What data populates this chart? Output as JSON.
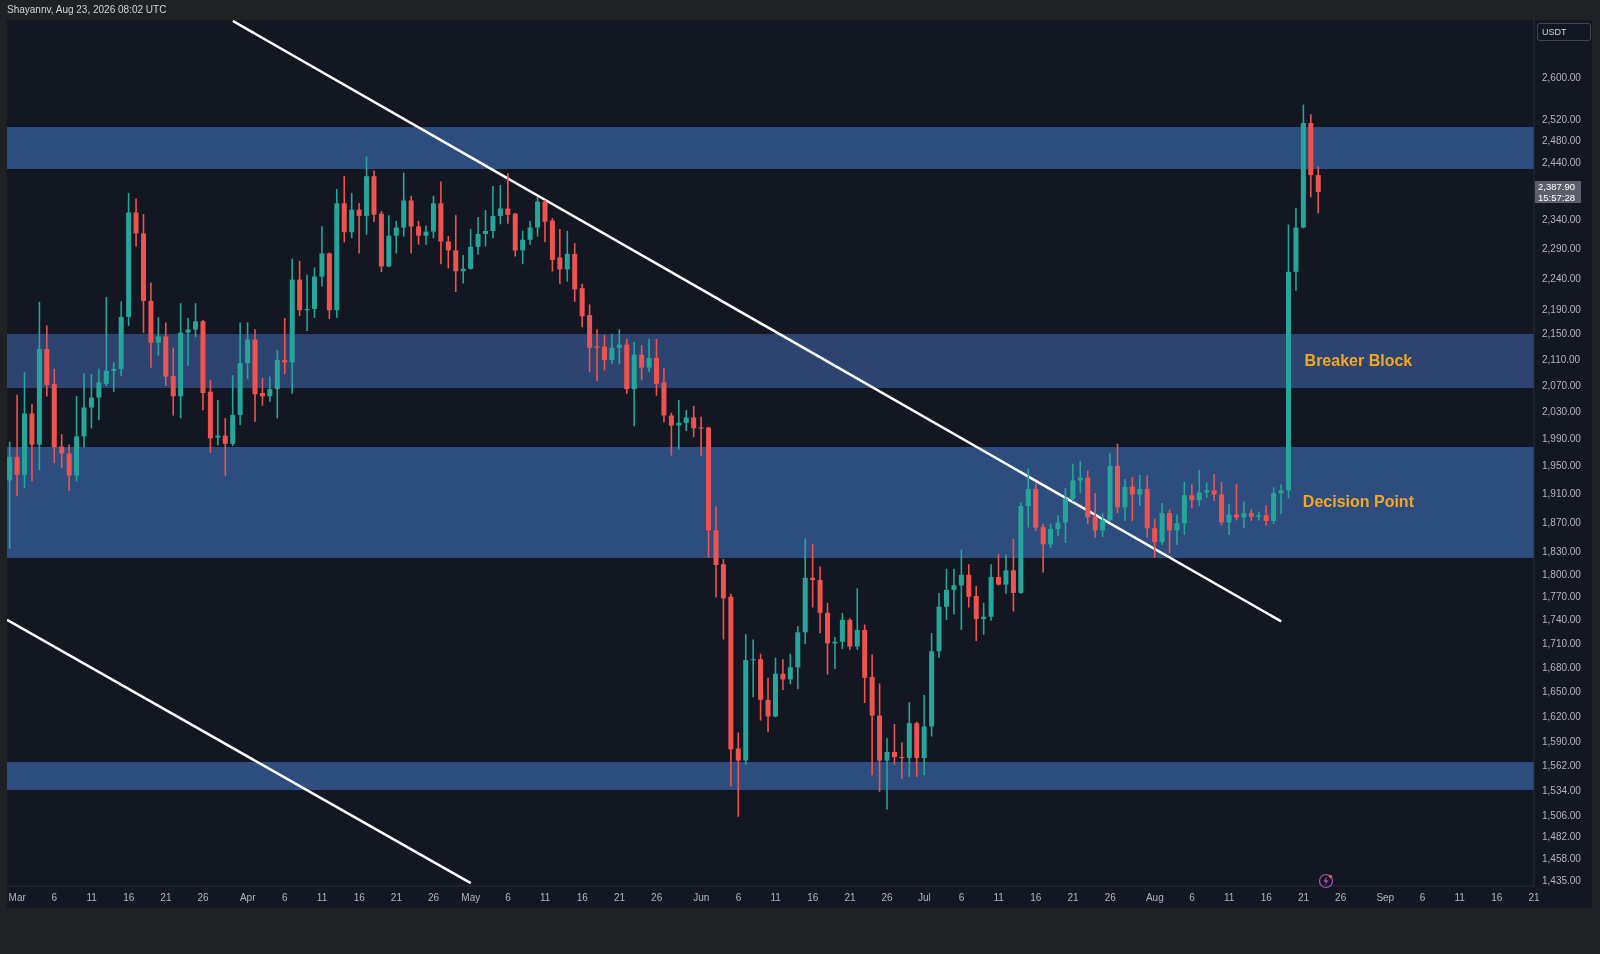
{
  "chart_data": {
    "type": "candlestick",
    "annotations": [
      "Shayannv, Aug 23, 2026 08:02 UTC",
      "2,387.90",
      "15:57:28"
    ],
    "ylabel": "USDT",
    "x": [
      "2026-02-28",
      "2026-03-01",
      "2026-03-02",
      "2026-03-03",
      "2026-03-04",
      "2026-03-05",
      "2026-03-06",
      "2026-03-07",
      "2026-03-08",
      "2026-03-09",
      "2026-03-10",
      "2026-03-11",
      "2026-03-12",
      "2026-03-13",
      "2026-03-14",
      "2026-03-15",
      "2026-03-16",
      "2026-03-17",
      "2026-03-18",
      "2026-03-19",
      "2026-03-20",
      "2026-03-21",
      "2026-03-22",
      "2026-03-23",
      "2026-03-24",
      "2026-03-25",
      "2026-03-26",
      "2026-03-27",
      "2026-03-28",
      "2026-03-29",
      "2026-03-30",
      "2026-03-31",
      "2026-04-01",
      "2026-04-02",
      "2026-04-03",
      "2026-04-04",
      "2026-04-05",
      "2026-04-06",
      "2026-04-07",
      "2026-04-08",
      "2026-04-09",
      "2026-04-10",
      "2026-04-11",
      "2026-04-12",
      "2026-04-13",
      "2026-04-14",
      "2026-04-15",
      "2026-04-16",
      "2026-04-17",
      "2026-04-18",
      "2026-04-19",
      "2026-04-20",
      "2026-04-21",
      "2026-04-22",
      "2026-04-23",
      "2026-04-24",
      "2026-04-25",
      "2026-04-26",
      "2026-04-27",
      "2026-04-28",
      "2026-04-29",
      "2026-04-30",
      "2026-05-01",
      "2026-05-02",
      "2026-05-03",
      "2026-05-04",
      "2026-05-05",
      "2026-05-06",
      "2026-05-07",
      "2026-05-08",
      "2026-05-09",
      "2026-05-10",
      "2026-05-11",
      "2026-05-12",
      "2026-05-13",
      "2026-05-14",
      "2026-05-15",
      "2026-05-16",
      "2026-05-17",
      "2026-05-18",
      "2026-05-19",
      "2026-05-20",
      "2026-05-21",
      "2026-05-22",
      "2026-05-23",
      "2026-05-24",
      "2026-05-25",
      "2026-05-26",
      "2026-05-27",
      "2026-05-28",
      "2026-05-29",
      "2026-05-30",
      "2026-05-31",
      "2026-06-01",
      "2026-06-02",
      "2026-06-03",
      "2026-06-04",
      "2026-06-05",
      "2026-06-06",
      "2026-06-07",
      "2026-06-08",
      "2026-06-09",
      "2026-06-10",
      "2026-06-11",
      "2026-06-12",
      "2026-06-13",
      "2026-06-14",
      "2026-06-15",
      "2026-06-16",
      "2026-06-17",
      "2026-06-18",
      "2026-06-19",
      "2026-06-20",
      "2026-06-21",
      "2026-06-22",
      "2026-06-23",
      "2026-06-24",
      "2026-06-25",
      "2026-06-26",
      "2026-06-27",
      "2026-06-28",
      "2026-06-29",
      "2026-06-30",
      "2026-07-01",
      "2026-07-02",
      "2026-07-03",
      "2026-07-04",
      "2026-07-05",
      "2026-07-06",
      "2026-07-07",
      "2026-07-08",
      "2026-07-09",
      "2026-07-10",
      "2026-07-11",
      "2026-07-12",
      "2026-07-13",
      "2026-07-14",
      "2026-07-15",
      "2026-07-16",
      "2026-07-17",
      "2026-07-18",
      "2026-07-19",
      "2026-07-20",
      "2026-07-21",
      "2026-07-22",
      "2026-07-23",
      "2026-07-24",
      "2026-07-25",
      "2026-07-26",
      "2026-07-27",
      "2026-07-28",
      "2026-07-29",
      "2026-07-30",
      "2026-07-31",
      "2026-08-01",
      "2026-08-02",
      "2026-08-03",
      "2026-08-04",
      "2026-08-05",
      "2026-08-06",
      "2026-08-07",
      "2026-08-08",
      "2026-08-09",
      "2026-08-10",
      "2026-08-11",
      "2026-08-12",
      "2026-08-13",
      "2026-08-14",
      "2026-08-15",
      "2026-08-16",
      "2026-08-17",
      "2026-08-18",
      "2026-08-19",
      "2026-08-20",
      "2026-08-21",
      "2026-08-22",
      "2026-08-23"
    ],
    "ohlc": [
      [
        1929,
        1984,
        1835,
        1963
      ],
      [
        1963,
        2054,
        1908,
        1937
      ],
      [
        1937,
        2089,
        1919,
        2027
      ],
      [
        2027,
        2040,
        1929,
        1981
      ],
      [
        1981,
        2200,
        1945,
        2126
      ],
      [
        2126,
        2162,
        2054,
        2070
      ],
      [
        2072,
        2094,
        1955,
        1977
      ],
      [
        1978,
        1995,
        1948,
        1968
      ],
      [
        1968,
        1980,
        1915,
        1936
      ],
      [
        1936,
        2052,
        1929,
        1993
      ],
      [
        1993,
        2087,
        1978,
        2036
      ],
      [
        2036,
        2086,
        2006,
        2051
      ],
      [
        2051,
        2094,
        2018,
        2074
      ],
      [
        2072,
        2208,
        2070,
        2092
      ],
      [
        2092,
        2104,
        2061,
        2095
      ],
      [
        2095,
        2201,
        2085,
        2177
      ],
      [
        2177,
        2385,
        2164,
        2352
      ],
      [
        2352,
        2375,
        2295,
        2316
      ],
      [
        2316,
        2348,
        2153,
        2203
      ],
      [
        2203,
        2232,
        2098,
        2136
      ],
      [
        2136,
        2175,
        2117,
        2146
      ],
      [
        2146,
        2167,
        2070,
        2083
      ],
      [
        2084,
        2127,
        2025,
        2053
      ],
      [
        2053,
        2198,
        2021,
        2152
      ],
      [
        2152,
        2174,
        2101,
        2157
      ],
      [
        2157,
        2198,
        2146,
        2170
      ],
      [
        2170,
        2171,
        2033,
        2058
      ],
      [
        2060,
        2077,
        1970,
        1990
      ],
      [
        1991,
        2046,
        1981,
        1994
      ],
      [
        1994,
        2019,
        1937,
        1982
      ],
      [
        1982,
        2084,
        1980,
        2025
      ],
      [
        2025,
        2167,
        2011,
        2104
      ],
      [
        2104,
        2167,
        2081,
        2141
      ],
      [
        2141,
        2156,
        2016,
        2056
      ],
      [
        2058,
        2080,
        2040,
        2053
      ],
      [
        2053,
        2082,
        2046,
        2064
      ],
      [
        2064,
        2123,
        2021,
        2109
      ],
      [
        2109,
        2174,
        2088,
        2105
      ],
      [
        2105,
        2272,
        2058,
        2238
      ],
      [
        2238,
        2268,
        2180,
        2188
      ],
      [
        2188,
        2245,
        2156,
        2190
      ],
      [
        2190,
        2257,
        2177,
        2243
      ],
      [
        2243,
        2327,
        2228,
        2282
      ],
      [
        2282,
        2282,
        2175,
        2188
      ],
      [
        2188,
        2392,
        2177,
        2368
      ],
      [
        2368,
        2415,
        2302,
        2318
      ],
      [
        2318,
        2385,
        2309,
        2357
      ],
      [
        2357,
        2367,
        2283,
        2346
      ],
      [
        2346,
        2450,
        2315,
        2416
      ],
      [
        2416,
        2425,
        2337,
        2348
      ],
      [
        2350,
        2353,
        2252,
        2260
      ],
      [
        2260,
        2346,
        2260,
        2312
      ],
      [
        2312,
        2336,
        2283,
        2326
      ],
      [
        2326,
        2421,
        2312,
        2373
      ],
      [
        2373,
        2380,
        2283,
        2328
      ],
      [
        2328,
        2336,
        2298,
        2312
      ],
      [
        2312,
        2328,
        2298,
        2319
      ],
      [
        2319,
        2380,
        2309,
        2368
      ],
      [
        2368,
        2405,
        2265,
        2302
      ],
      [
        2302,
        2310,
        2258,
        2287
      ],
      [
        2287,
        2346,
        2219,
        2252
      ],
      [
        2252,
        2278,
        2233,
        2256
      ],
      [
        2256,
        2322,
        2256,
        2293
      ],
      [
        2293,
        2343,
        2281,
        2315
      ],
      [
        2315,
        2355,
        2295,
        2320
      ],
      [
        2320,
        2397,
        2309,
        2346
      ],
      [
        2346,
        2399,
        2333,
        2359
      ],
      [
        2359,
        2420,
        2334,
        2348
      ],
      [
        2350,
        2350,
        2278,
        2287
      ],
      [
        2287,
        2319,
        2265,
        2305
      ],
      [
        2305,
        2336,
        2298,
        2326
      ],
      [
        2326,
        2378,
        2312,
        2371
      ],
      [
        2371,
        2373,
        2302,
        2336
      ],
      [
        2338,
        2341,
        2253,
        2271
      ],
      [
        2275,
        2322,
        2232,
        2255
      ],
      [
        2255,
        2319,
        2236,
        2281
      ],
      [
        2281,
        2298,
        2203,
        2222
      ],
      [
        2224,
        2230,
        2162,
        2178
      ],
      [
        2180,
        2196,
        2091,
        2128
      ],
      [
        2130,
        2156,
        2077,
        2128
      ],
      [
        2130,
        2147,
        2094,
        2109
      ],
      [
        2109,
        2149,
        2104,
        2128
      ],
      [
        2128,
        2156,
        2104,
        2133
      ],
      [
        2133,
        2141,
        2058,
        2064
      ],
      [
        2064,
        2136,
        2009,
        2117
      ],
      [
        2117,
        2131,
        2079,
        2097
      ],
      [
        2097,
        2141,
        2091,
        2112
      ],
      [
        2112,
        2141,
        2055,
        2072
      ],
      [
        2074,
        2095,
        2015,
        2024
      ],
      [
        2024,
        2027,
        1966,
        2009
      ],
      [
        2009,
        2046,
        1975,
        2013
      ],
      [
        2013,
        2031,
        2002,
        2021
      ],
      [
        2021,
        2037,
        1993,
        2005
      ],
      [
        2006,
        2021,
        1965,
        2005
      ],
      [
        2006,
        2006,
        1823,
        1859
      ],
      [
        1859,
        1891,
        1770,
        1812
      ],
      [
        1813,
        1819,
        1716,
        1768
      ],
      [
        1770,
        1773,
        1539,
        1581
      ],
      [
        1582,
        1600,
        1505,
        1568
      ],
      [
        1568,
        1721,
        1564,
        1689
      ],
      [
        1689,
        1714,
        1644,
        1690
      ],
      [
        1690,
        1696,
        1616,
        1640
      ],
      [
        1640,
        1666,
        1602,
        1620
      ],
      [
        1620,
        1691,
        1620,
        1672
      ],
      [
        1672,
        1689,
        1653,
        1665
      ],
      [
        1665,
        1696,
        1660,
        1680
      ],
      [
        1680,
        1731,
        1654,
        1724
      ],
      [
        1724,
        1847,
        1710,
        1795
      ],
      [
        1795,
        1839,
        1757,
        1792
      ],
      [
        1792,
        1809,
        1724,
        1749
      ],
      [
        1749,
        1761,
        1672,
        1710
      ],
      [
        1710,
        1717,
        1679,
        1712
      ],
      [
        1712,
        1748,
        1704,
        1740
      ],
      [
        1740,
        1741,
        1703,
        1706
      ],
      [
        1706,
        1780,
        1703,
        1727
      ],
      [
        1727,
        1733,
        1637,
        1667
      ],
      [
        1668,
        1695,
        1552,
        1621
      ],
      [
        1621,
        1659,
        1533,
        1568
      ],
      [
        1568,
        1593,
        1513,
        1578
      ],
      [
        1578,
        1610,
        1564,
        1572
      ],
      [
        1572,
        1588,
        1548,
        1571
      ],
      [
        1571,
        1636,
        1550,
        1612
      ],
      [
        1612,
        1613,
        1550,
        1571
      ],
      [
        1571,
        1645,
        1552,
        1608
      ],
      [
        1608,
        1722,
        1597,
        1700
      ],
      [
        1700,
        1774,
        1693,
        1757
      ],
      [
        1757,
        1806,
        1741,
        1779
      ],
      [
        1779,
        1806,
        1748,
        1785
      ],
      [
        1785,
        1832,
        1728,
        1799
      ],
      [
        1799,
        1812,
        1757,
        1770
      ],
      [
        1771,
        1783,
        1714,
        1741
      ],
      [
        1741,
        1761,
        1722,
        1744
      ],
      [
        1744,
        1812,
        1740,
        1796
      ],
      [
        1796,
        1826,
        1786,
        1786
      ],
      [
        1786,
        1825,
        1775,
        1805
      ],
      [
        1805,
        1846,
        1752,
        1775
      ],
      [
        1775,
        1897,
        1775,
        1893
      ],
      [
        1893,
        1945,
        1864,
        1917
      ],
      [
        1917,
        1924,
        1859,
        1863
      ],
      [
        1864,
        1867,
        1803,
        1840
      ],
      [
        1840,
        1867,
        1836,
        1861
      ],
      [
        1861,
        1879,
        1852,
        1870
      ],
      [
        1870,
        1917,
        1843,
        1903
      ],
      [
        1903,
        1952,
        1900,
        1929
      ],
      [
        1929,
        1956,
        1912,
        1933
      ],
      [
        1933,
        1942,
        1869,
        1877
      ],
      [
        1878,
        1910,
        1850,
        1859
      ],
      [
        1859,
        1882,
        1851,
        1873
      ],
      [
        1873,
        1967,
        1873,
        1950
      ],
      [
        1950,
        1981,
        1884,
        1891
      ],
      [
        1891,
        1930,
        1873,
        1920
      ],
      [
        1920,
        1933,
        1873,
        1909
      ],
      [
        1909,
        1936,
        1894,
        1917
      ],
      [
        1917,
        1935,
        1850,
        1862
      ],
      [
        1862,
        1874,
        1823,
        1843
      ],
      [
        1843,
        1896,
        1840,
        1883
      ],
      [
        1883,
        1887,
        1829,
        1859
      ],
      [
        1859,
        1880,
        1840,
        1869
      ],
      [
        1869,
        1926,
        1854,
        1908
      ],
      [
        1908,
        1922,
        1891,
        1901
      ],
      [
        1901,
        1943,
        1894,
        1912
      ],
      [
        1912,
        1925,
        1905,
        1915
      ],
      [
        1915,
        1937,
        1901,
        1909
      ],
      [
        1909,
        1926,
        1867,
        1870
      ],
      [
        1870,
        1895,
        1854,
        1881
      ],
      [
        1881,
        1923,
        1874,
        1877
      ],
      [
        1877,
        1898,
        1863,
        1883
      ],
      [
        1883,
        1887,
        1873,
        1878
      ],
      [
        1878,
        1884,
        1874,
        1880
      ],
      [
        1880,
        1893,
        1867,
        1872
      ],
      [
        1872,
        1918,
        1869,
        1911
      ],
      [
        1911,
        1922,
        1883,
        1915
      ],
      [
        1915,
        2330,
        1905,
        2251
      ],
      [
        2251,
        2359,
        2221,
        2326
      ],
      [
        2326,
        2546,
        2326,
        2513
      ],
      [
        2513,
        2528,
        2380,
        2418
      ],
      [
        2418,
        2432,
        2352,
        2387.9
      ]
    ],
    "colors": [
      "#26a69a",
      "#ef5350",
      "#26a69a",
      "#ef5350",
      "#26a69a",
      "#ef5350",
      "#ef5350",
      "#ef5350",
      "#ef5350",
      "#26a69a",
      "#26a69a",
      "#26a69a",
      "#26a69a",
      "#26a69a",
      "#26a69a",
      "#26a69a",
      "#26a69a",
      "#ef5350",
      "#ef5350",
      "#ef5350",
      "#26a69a",
      "#ef5350",
      "#ef5350",
      "#26a69a",
      "#26a69a",
      "#26a69a",
      "#ef5350",
      "#ef5350",
      "#26a69a",
      "#ef5350",
      "#26a69a",
      "#26a69a",
      "#26a69a",
      "#ef5350",
      "#ef5350",
      "#26a69a",
      "#26a69a",
      "#ef5350",
      "#26a69a",
      "#ef5350",
      "#26a69a",
      "#26a69a",
      "#26a69a",
      "#ef5350",
      "#26a69a",
      "#ef5350",
      "#26a69a",
      "#ef5350",
      "#26a69a",
      "#ef5350",
      "#ef5350",
      "#26a69a",
      "#26a69a",
      "#26a69a",
      "#ef5350",
      "#ef5350",
      "#26a69a",
      "#26a69a",
      "#ef5350",
      "#ef5350",
      "#ef5350",
      "#26a69a",
      "#26a69a",
      "#26a69a",
      "#26a69a",
      "#26a69a",
      "#26a69a",
      "#ef5350",
      "#ef5350",
      "#26a69a",
      "#26a69a",
      "#26a69a",
      "#ef5350",
      "#ef5350",
      "#ef5350",
      "#26a69a",
      "#ef5350",
      "#ef5350",
      "#ef5350",
      "#ef5350",
      "#ef5350",
      "#26a69a",
      "#26a69a",
      "#ef5350",
      "#26a69a",
      "#ef5350",
      "#26a69a",
      "#ef5350",
      "#ef5350",
      "#ef5350",
      "#26a69a",
      "#26a69a",
      "#ef5350",
      "#ef5350",
      "#ef5350",
      "#ef5350",
      "#ef5350",
      "#ef5350",
      "#ef5350",
      "#26a69a",
      "#26a69a",
      "#ef5350",
      "#ef5350",
      "#26a69a",
      "#ef5350",
      "#26a69a",
      "#26a69a",
      "#26a69a",
      "#ef5350",
      "#ef5350",
      "#ef5350",
      "#26a69a",
      "#26a69a",
      "#ef5350",
      "#26a69a",
      "#ef5350",
      "#ef5350",
      "#ef5350",
      "#26a69a",
      "#ef5350",
      "#ef5350",
      "#26a69a",
      "#ef5350",
      "#26a69a",
      "#26a69a",
      "#26a69a",
      "#26a69a",
      "#26a69a",
      "#26a69a",
      "#ef5350",
      "#ef5350",
      "#26a69a",
      "#26a69a",
      "#ef5350",
      "#26a69a",
      "#ef5350",
      "#26a69a",
      "#26a69a",
      "#ef5350",
      "#ef5350",
      "#26a69a",
      "#26a69a",
      "#26a69a",
      "#26a69a",
      "#26a69a",
      "#ef5350",
      "#ef5350",
      "#26a69a",
      "#26a69a",
      "#ef5350",
      "#26a69a",
      "#ef5350",
      "#26a69a",
      "#ef5350",
      "#ef5350",
      "#26a69a",
      "#ef5350",
      "#26a69a",
      "#26a69a",
      "#ef5350",
      "#26a69a",
      "#26a69a",
      "#ef5350",
      "#ef5350",
      "#26a69a",
      "#ef5350",
      "#26a69a",
      "#ef5350",
      "#26a69a",
      "#ef5350",
      "#26a69a",
      "#26a69a",
      "#26a69a",
      "#26a69a",
      "#26a69a",
      "#ef5350",
      "#ef5350"
    ],
    "series": [
      {
        "type": "line",
        "color": "#ffffff",
        "x": [
          "2026-03-30",
          "2026-08-18"
        ],
        "values": [
          2710,
          1738
        ]
      },
      {
        "type": "line",
        "color": "#ffffff",
        "x": [
          "2026-02-27T15:00",
          "2026-05-01"
        ],
        "values": [
          1740,
          1432
        ]
      }
    ],
    "bands": [
      {
        "axis": "y",
        "from": 2429,
        "to": 2506,
        "color": "#2d4d7e"
      },
      {
        "axis": "y",
        "from": 2065,
        "to": 2150,
        "color": "#2d4470",
        "label": "Breaker Block"
      },
      {
        "axis": "y",
        "from": 1822,
        "to": 1978,
        "color": "#2d4d7e",
        "label": "Decision Point"
      },
      {
        "axis": "y",
        "from": 1534,
        "to": 1566,
        "color": "#2d4d7e"
      }
    ],
    "log": true,
    "xlim": [
      "2026-02-27T15:00",
      "2026-09-21"
    ],
    "ylim": [
      1429,
      2712
    ],
    "xticks": [
      {
        "value": "2026-03-01",
        "label": "Mar"
      },
      {
        "value": "2026-03-06",
        "label": "6"
      },
      {
        "value": "2026-03-11",
        "label": "11"
      },
      {
        "value": "2026-03-16",
        "label": "16"
      },
      {
        "value": "2026-03-21",
        "label": "21"
      },
      {
        "value": "2026-03-26",
        "label": "26"
      },
      {
        "value": "2026-04-01",
        "label": "Apr"
      },
      {
        "value": "2026-04-06",
        "label": "6"
      },
      {
        "value": "2026-04-11",
        "label": "11"
      },
      {
        "value": "2026-04-16",
        "label": "16"
      },
      {
        "value": "2026-04-21",
        "label": "21"
      },
      {
        "value": "2026-04-26",
        "label": "26"
      },
      {
        "value": "2026-05-01",
        "label": "May"
      },
      {
        "value": "2026-05-06",
        "label": "6"
      },
      {
        "value": "2026-05-11",
        "label": "11"
      },
      {
        "value": "2026-05-16",
        "label": "16"
      },
      {
        "value": "2026-05-21",
        "label": "21"
      },
      {
        "value": "2026-05-26",
        "label": "26"
      },
      {
        "value": "2026-06-01",
        "label": "Jun"
      },
      {
        "value": "2026-06-06",
        "label": "6"
      },
      {
        "value": "2026-06-11",
        "label": "11"
      },
      {
        "value": "2026-06-16",
        "label": "16"
      },
      {
        "value": "2026-06-21",
        "label": "21"
      },
      {
        "value": "2026-06-26",
        "label": "26"
      },
      {
        "value": "2026-07-01",
        "label": "Jul"
      },
      {
        "value": "2026-07-06",
        "label": "6"
      },
      {
        "value": "2026-07-11",
        "label": "11"
      },
      {
        "value": "2026-07-16",
        "label": "16"
      },
      {
        "value": "2026-07-21",
        "label": "21"
      },
      {
        "value": "2026-07-26",
        "label": "26"
      },
      {
        "value": "2026-08-01",
        "label": "Aug"
      },
      {
        "value": "2026-08-06",
        "label": "6"
      },
      {
        "value": "2026-08-11",
        "label": "11"
      },
      {
        "value": "2026-08-16",
        "label": "16"
      },
      {
        "value": "2026-08-21",
        "label": "21"
      },
      {
        "value": "2026-08-26",
        "label": "26"
      },
      {
        "value": "2026-09-01",
        "label": "Sep"
      },
      {
        "value": "2026-09-06",
        "label": "6"
      },
      {
        "value": "2026-09-11",
        "label": "11"
      },
      {
        "value": "2026-09-16",
        "label": "16"
      },
      {
        "value": "2026-09-21",
        "label": "21"
      }
    ],
    "yticks": [
      {
        "value": 2600,
        "label": "2,600.00"
      },
      {
        "value": 2520,
        "label": "2,520.00"
      },
      {
        "value": 2480,
        "label": "2,480.00"
      },
      {
        "value": 2440,
        "label": "2,440.00"
      },
      {
        "value": 2340,
        "label": "2,340.00"
      },
      {
        "value": 2290,
        "label": "2,290.00"
      },
      {
        "value": 2240,
        "label": "2,240.00"
      },
      {
        "value": 2190,
        "label": "2,190.00"
      },
      {
        "value": 2150,
        "label": "2,150.00"
      },
      {
        "value": 2110,
        "label": "2,110.00"
      },
      {
        "value": 2070,
        "label": "2,070.00"
      },
      {
        "value": 2030,
        "label": "2,030.00"
      },
      {
        "value": 1990,
        "label": "1,990.00"
      },
      {
        "value": 1950,
        "label": "1,950.00"
      },
      {
        "value": 1910,
        "label": "1,910.00"
      },
      {
        "value": 1870,
        "label": "1,870.00"
      },
      {
        "value": 1830,
        "label": "1,830.00"
      },
      {
        "value": 1800,
        "label": "1,800.00"
      },
      {
        "value": 1770,
        "label": "1,770.00"
      },
      {
        "value": 1740,
        "label": "1,740.00"
      },
      {
        "value": 1710,
        "label": "1,710.00"
      },
      {
        "value": 1680,
        "label": "1,680.00"
      },
      {
        "value": 1650,
        "label": "1,650.00"
      },
      {
        "value": 1620,
        "label": "1,620.00"
      },
      {
        "value": 1590,
        "label": "1,590.00"
      },
      {
        "value": 1562,
        "label": "1,562.00"
      },
      {
        "value": 1534,
        "label": "1,534.00"
      },
      {
        "value": 1506,
        "label": "1,506.00"
      },
      {
        "value": 1482,
        "label": "1,482.00"
      },
      {
        "value": 1458,
        "label": "1,458.00"
      },
      {
        "value": 1435,
        "label": "1,435.00"
      }
    ]
  }
}
